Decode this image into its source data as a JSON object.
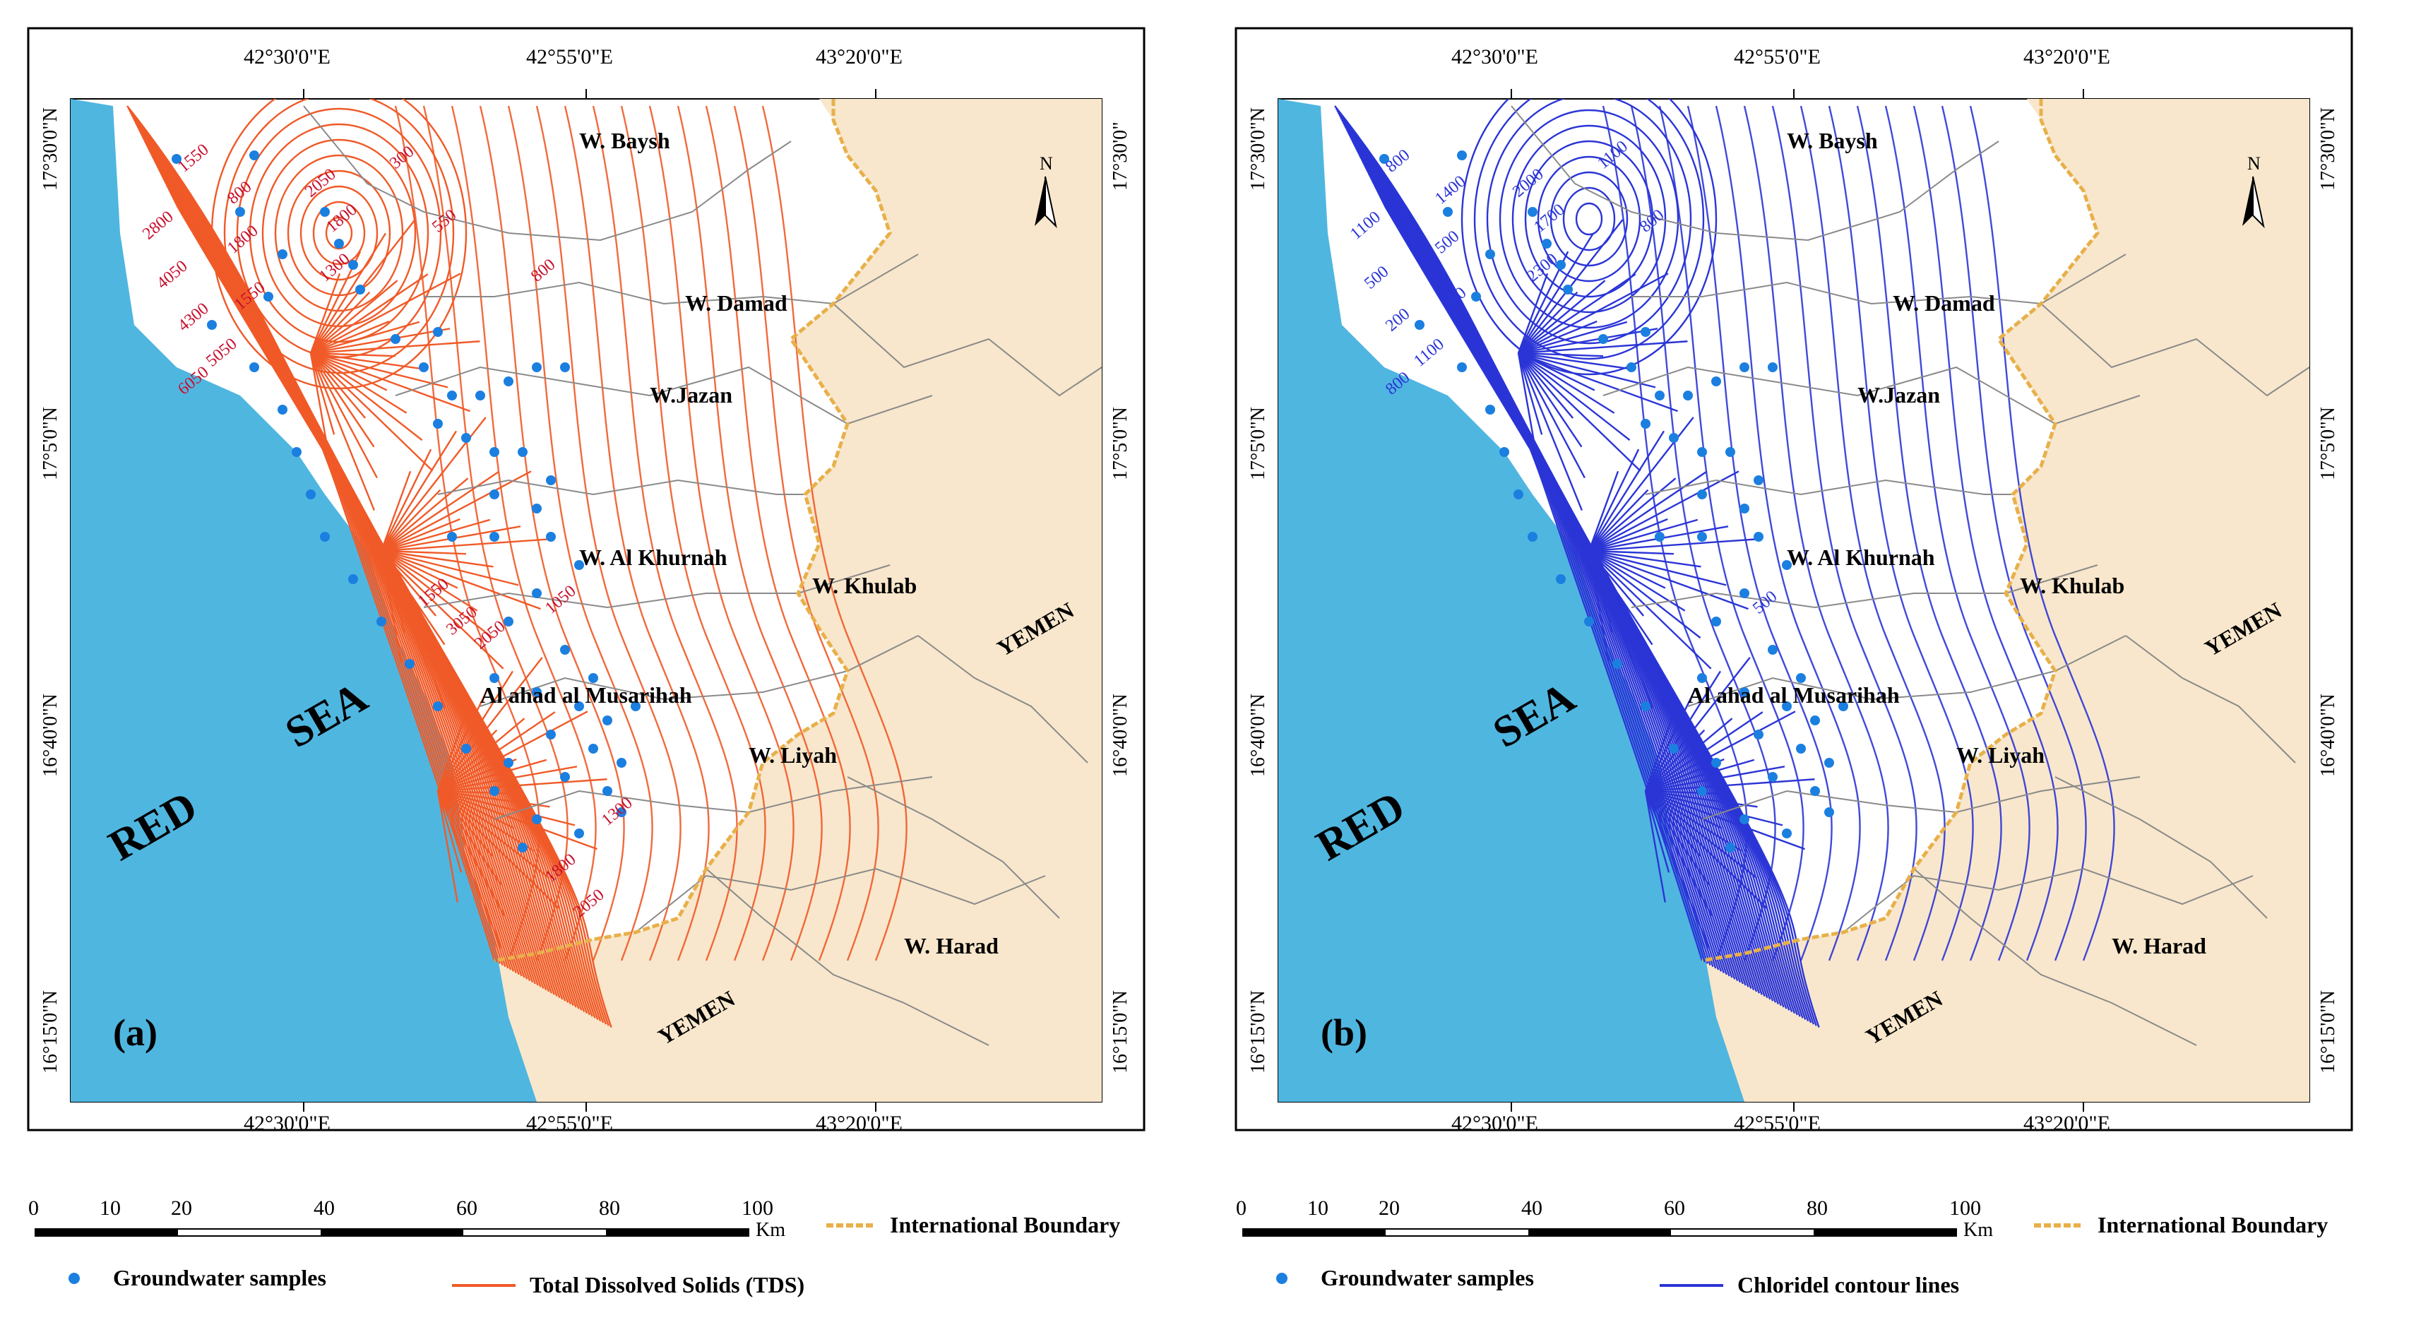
{
  "panels": [
    {
      "panel_label": "(a)",
      "top_lon_ticks": [
        "42°30'0\"E",
        "42°55'0\"E",
        "43°20'0\"E"
      ],
      "bottom_lon_ticks": [
        "42°30'0\"E",
        "42°55'0\"E",
        "43°20'0\"E"
      ],
      "lat_ticks_left": [
        "17°30'0\"N",
        "17°5'0\"N",
        "16°40'0\"N",
        "16°15'0\"N"
      ],
      "lat_ticks_right": [
        "17°30'0\"",
        "17°5'0\"N",
        "16°40'0\"N",
        "16°15'0\"N"
      ],
      "sea_label_1": "RED",
      "sea_label_2": "SEA",
      "wadis": [
        "W. Baysh",
        "W. Damad",
        "W.Jazan",
        "W. Al Khurnah",
        "W. Khulab",
        "Al ahad al Musarihah",
        "W. Liyah",
        "W. Harad"
      ],
      "country_labels": [
        "YEMEN",
        "YEMEN"
      ],
      "north_label": "N",
      "contour_labels": [
        "1550",
        "800",
        "2050",
        "1800",
        "1300",
        "300",
        "550",
        "1800",
        "2800",
        "1550",
        "4050",
        "4300",
        "5050",
        "6050",
        "1050",
        "800",
        "1300",
        "2050",
        "1550",
        "3050",
        "1800",
        "2050"
      ],
      "scale_ticks": [
        "0",
        "10",
        "20",
        "40",
        "60",
        "80",
        "100"
      ],
      "scale_unit": "Km",
      "legend": {
        "boundary": "International Boundary",
        "samples": "Groundwater samples",
        "contours": "Total Dissolved Solids (TDS)"
      },
      "contour_color": "#f05a28"
    },
    {
      "panel_label": "(b)",
      "top_lon_ticks": [
        "42°30'0\"E",
        "42°55'0\"E",
        "43°20'0\"E"
      ],
      "bottom_lon_ticks": [
        "42°30'0\"E",
        "42°55'0\"E",
        "43°20'0\"E"
      ],
      "lat_ticks_left": [
        "17°30'0\"N",
        "17°5'0\"N",
        "16°40'0\"N",
        "16°15'0\"N"
      ],
      "lat_ticks_right": [
        "17°30'0\"N",
        "17°5'0\"N",
        "16°40'0\"N",
        "16°15'0\"N"
      ],
      "sea_label_1": "RED",
      "sea_label_2": "SEA",
      "wadis": [
        "W. Baysh",
        "W. Damad",
        "W.Jazan",
        "W. Al Khurnah",
        "W. Khulab",
        "Al ahad al Musarihah",
        "W. Liyah",
        "W. Harad"
      ],
      "country_labels": [
        "YEMEN",
        "YEMEN"
      ],
      "north_label": "N",
      "contour_labels": [
        "800",
        "1400",
        "2000",
        "1700",
        "2300",
        "1100",
        "800",
        "500",
        "1100",
        "900",
        "500",
        "200",
        "1100",
        "800",
        "500"
      ],
      "scale_ticks": [
        "0",
        "10",
        "20",
        "40",
        "60",
        "80",
        "100"
      ],
      "scale_unit": "Km",
      "legend": {
        "boundary": "International Boundary",
        "samples": "Groundwater samples",
        "contours": "Chloridel contour lines"
      },
      "contour_color": "#2b35d6"
    }
  ],
  "colors": {
    "sea": "#4fb6e0",
    "yemen": "#f8e7cc",
    "boundary": "#e8b04a",
    "sample": "#1b7fe0"
  }
}
